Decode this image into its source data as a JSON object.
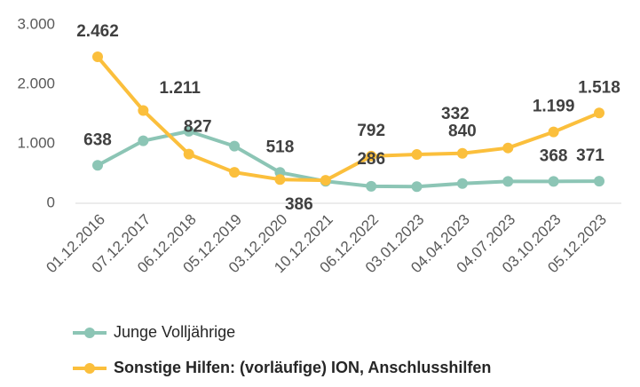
{
  "chart_data": {
    "type": "line",
    "categories": [
      "01.12.2016",
      "07.12.2017",
      "06.12.2018",
      "05.12.2019",
      "03.12.2020",
      "10.12.2021",
      "06.12.2022",
      "03.01.2023",
      "04.04.2023",
      "04.07.2023",
      "03.10.2023",
      "05.12.2023"
    ],
    "series": [
      {
        "name": "Junge Volljährige",
        "color": "#8cc5b5",
        "values": [
          638,
          1050,
          1211,
          960,
          518,
          370,
          286,
          280,
          332,
          368,
          368,
          371
        ],
        "value_labels": [
          "638",
          null,
          "1.211",
          null,
          "518",
          null,
          "286",
          null,
          "332",
          null,
          "368",
          "371"
        ]
      },
      {
        "name": "Sonstige Hilfen: (vorläufige) ION, Anschlusshilfen",
        "color": "#fbbf3c",
        "values": [
          2462,
          1560,
          827,
          520,
          400,
          386,
          792,
          820,
          840,
          930,
          1199,
          1518
        ],
        "value_labels": [
          "2.462",
          null,
          "827",
          null,
          null,
          "386",
          "792",
          null,
          "840",
          null,
          "1.199",
          "1.518"
        ]
      }
    ],
    "ylim": [
      0,
      3000
    ],
    "yticks": [
      0,
      {
        "value": 1000,
        "label": "1.000"
      },
      {
        "value": 2000,
        "label": "2.000"
      },
      {
        "value": 3000,
        "label": "3.000"
      }
    ]
  }
}
